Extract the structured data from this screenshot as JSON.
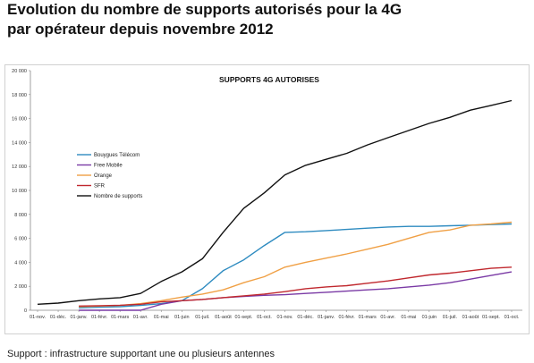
{
  "heading": {
    "line1": "Evolution du nombre de supports autorisés pour la 4G",
    "line2": "par opérateur depuis novembre 2012"
  },
  "footnote": "Support : infrastructure supportant une ou plusieurs antennes",
  "chart_data": {
    "type": "line",
    "title": "SUPPORTS 4G AUTORISES",
    "xlabel": "",
    "ylabel": "",
    "ylim": [
      0,
      20000
    ],
    "yticks": [
      0,
      2000,
      4000,
      6000,
      8000,
      10000,
      12000,
      14000,
      16000,
      18000,
      20000
    ],
    "ytick_labels": [
      "0",
      "2 000",
      "4 000",
      "6 000",
      "8 000",
      "10 000",
      "12 000",
      "14 000",
      "16 000",
      "18 000",
      "20 000"
    ],
    "categories": [
      "01-nov.",
      "01-déc.",
      "01-janv.",
      "01-févr.",
      "01-mars",
      "01-avr.",
      "01-mai",
      "01-juin",
      "01-juil.",
      "01-août",
      "01-sept.",
      "01-oct.",
      "01-nov.",
      "01-déc.",
      "01-janv.",
      "01-févr.",
      "01-mars",
      "01-avr.",
      "01-mai",
      "01-juin",
      "01-juil.",
      "01-août",
      "01-sept.",
      "01-oct."
    ],
    "grid": false,
    "legend_position": "left",
    "series": [
      {
        "name": "Bouygues Télécom",
        "color": "#2e8bc0",
        "values": [
          null,
          null,
          200,
          250,
          300,
          400,
          550,
          800,
          1800,
          3300,
          4200,
          5400,
          6500,
          6550,
          6650,
          6750,
          6850,
          6950,
          7000,
          7000,
          7050,
          7100,
          7150,
          7200
        ]
      },
      {
        "name": "Free Mobile",
        "color": "#7a3aa5",
        "values": [
          null,
          null,
          0,
          0,
          0,
          0,
          500,
          800,
          900,
          1050,
          1150,
          1250,
          1300,
          1400,
          1500,
          1600,
          1700,
          1800,
          1950,
          2100,
          2300,
          2600,
          2900,
          3200
        ]
      },
      {
        "name": "Orange",
        "color": "#f0a045",
        "values": [
          null,
          null,
          300,
          350,
          400,
          550,
          800,
          1100,
          1350,
          1700,
          2300,
          2800,
          3600,
          4000,
          4350,
          4700,
          5100,
          5500,
          6000,
          6500,
          6700,
          7100,
          7200,
          7350
        ]
      },
      {
        "name": "SFR",
        "color": "#c0282e",
        "values": [
          null,
          null,
          350,
          380,
          420,
          500,
          700,
          800,
          900,
          1050,
          1200,
          1350,
          1550,
          1800,
          1950,
          2050,
          2250,
          2450,
          2700,
          2950,
          3100,
          3300,
          3500,
          3600
        ]
      },
      {
        "name": "Nombre de supports",
        "color": "#111111",
        "values": [
          500,
          600,
          800,
          950,
          1050,
          1400,
          2400,
          3200,
          4300,
          6500,
          8500,
          9800,
          11300,
          12100,
          12600,
          13100,
          13800,
          14400,
          15000,
          15600,
          16100,
          16700,
          17100,
          17500
        ]
      }
    ]
  }
}
